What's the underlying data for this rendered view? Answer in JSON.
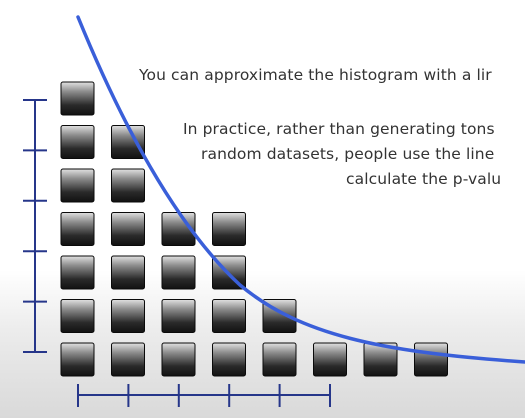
{
  "text_lines": [
    "You can approximate the histogram with a lir",
    "In practice, rather than generating tons",
    "random datasets, people use the line",
    "calculate the p-valu"
  ],
  "histogram": {
    "counts": [
      7,
      6,
      4,
      4,
      2,
      1,
      1,
      1
    ],
    "y_ticks": 6,
    "x_ticks": 6
  },
  "colors": {
    "curve": "#3a5fd9",
    "axis": "#26368a",
    "block_top": "#e2e2e2",
    "block_bottom": "#121212",
    "text": "#333333"
  }
}
